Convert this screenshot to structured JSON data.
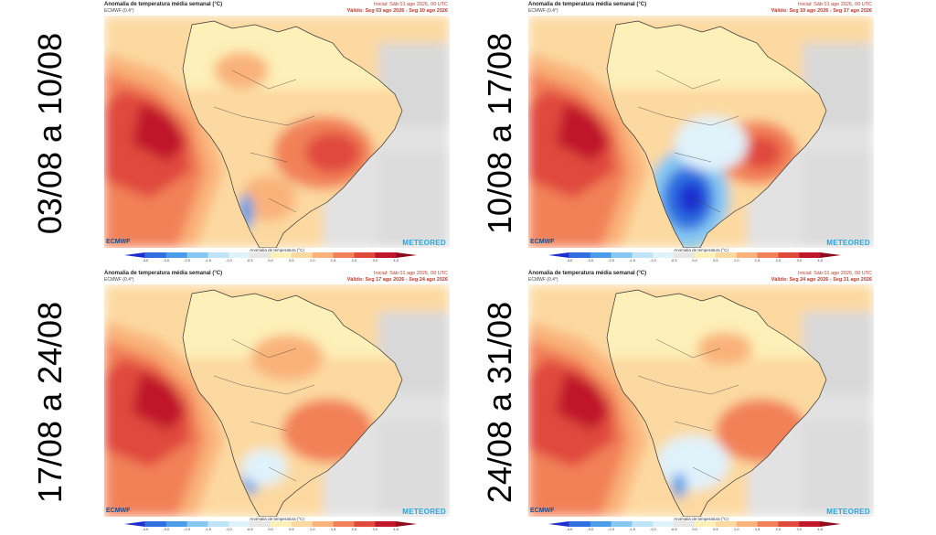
{
  "panels": [
    {
      "side_label": "03/08 a 10/08",
      "title": "Anomalia de temperatura média semanal (°C)",
      "model": "ECMWF (0.4°)",
      "initial": "Inicial: Sáb 01 ago 2026, 00 UTC",
      "valid": "Válido: Seg 03 ago 2026 - Seg 10 ago 2026",
      "colorbar_label": "Anomalia de temperatura (°C)",
      "logo_left": "ECMWF",
      "logo_right": "METEORED",
      "pattern": "warm-cold-south"
    },
    {
      "side_label": "10/08 a 17/08",
      "title": "Anomalia de temperatura média semanal (°C)",
      "model": "ECMWF (0.4°)",
      "initial": "Inicial: Sáb 01 ago 2026, 00 UTC",
      "valid": "Válido: Seg 10 ago 2026 - Seg 17 ago 2026",
      "colorbar_label": "Anomalia de temperatura (°C)",
      "logo_left": "ECMWF",
      "logo_right": "METEORED",
      "pattern": "cold-wave"
    },
    {
      "side_label": "17/08 a 24/08",
      "title": "Anomalia de temperatura média semanal (°C)",
      "model": "ECMWF (0.4°)",
      "initial": "Inicial: Sáb 01 ago 2026, 00 UTC",
      "valid": "Válido: Seg 17 ago 2026 - Seg 24 ago 2026",
      "colorbar_label": "Anomalia de temperatura (°C)",
      "logo_left": "ECMWF",
      "logo_right": "METEORED",
      "pattern": "warm"
    },
    {
      "side_label": "24/08 a 31/08",
      "title": "Anomalia de temperatura média semanal (°C)",
      "model": "ECMWF (0.4°)",
      "initial": "Inicial: Sáb 01 ago 2026, 00 UTC",
      "valid": "Válido: Seg 24 ago 2026 - Seg 31 ago 2026",
      "colorbar_label": "Anomalia de temperatura (°C)",
      "logo_left": "ECMWF",
      "logo_right": "METEORED",
      "pattern": "warm-mild-cold"
    }
  ],
  "colorbar": {
    "ticks": [
      "-4,0",
      "-3,0",
      "-2,0",
      "-1,5",
      "-1,0",
      "-0,5",
      "0,0",
      "0,5",
      "1,0",
      "1,5",
      "2,0",
      "3,0",
      "4,0"
    ],
    "colors": [
      "#1d2fd0",
      "#2f6fe0",
      "#4a9be8",
      "#86c8f2",
      "#bfe4f7",
      "#e0f2fa",
      "#e6e6e6",
      "#fdf0b8",
      "#fcd9a0",
      "#f9b27a",
      "#f28159",
      "#e04a3c",
      "#c0182a",
      "#8f0b1e"
    ]
  }
}
